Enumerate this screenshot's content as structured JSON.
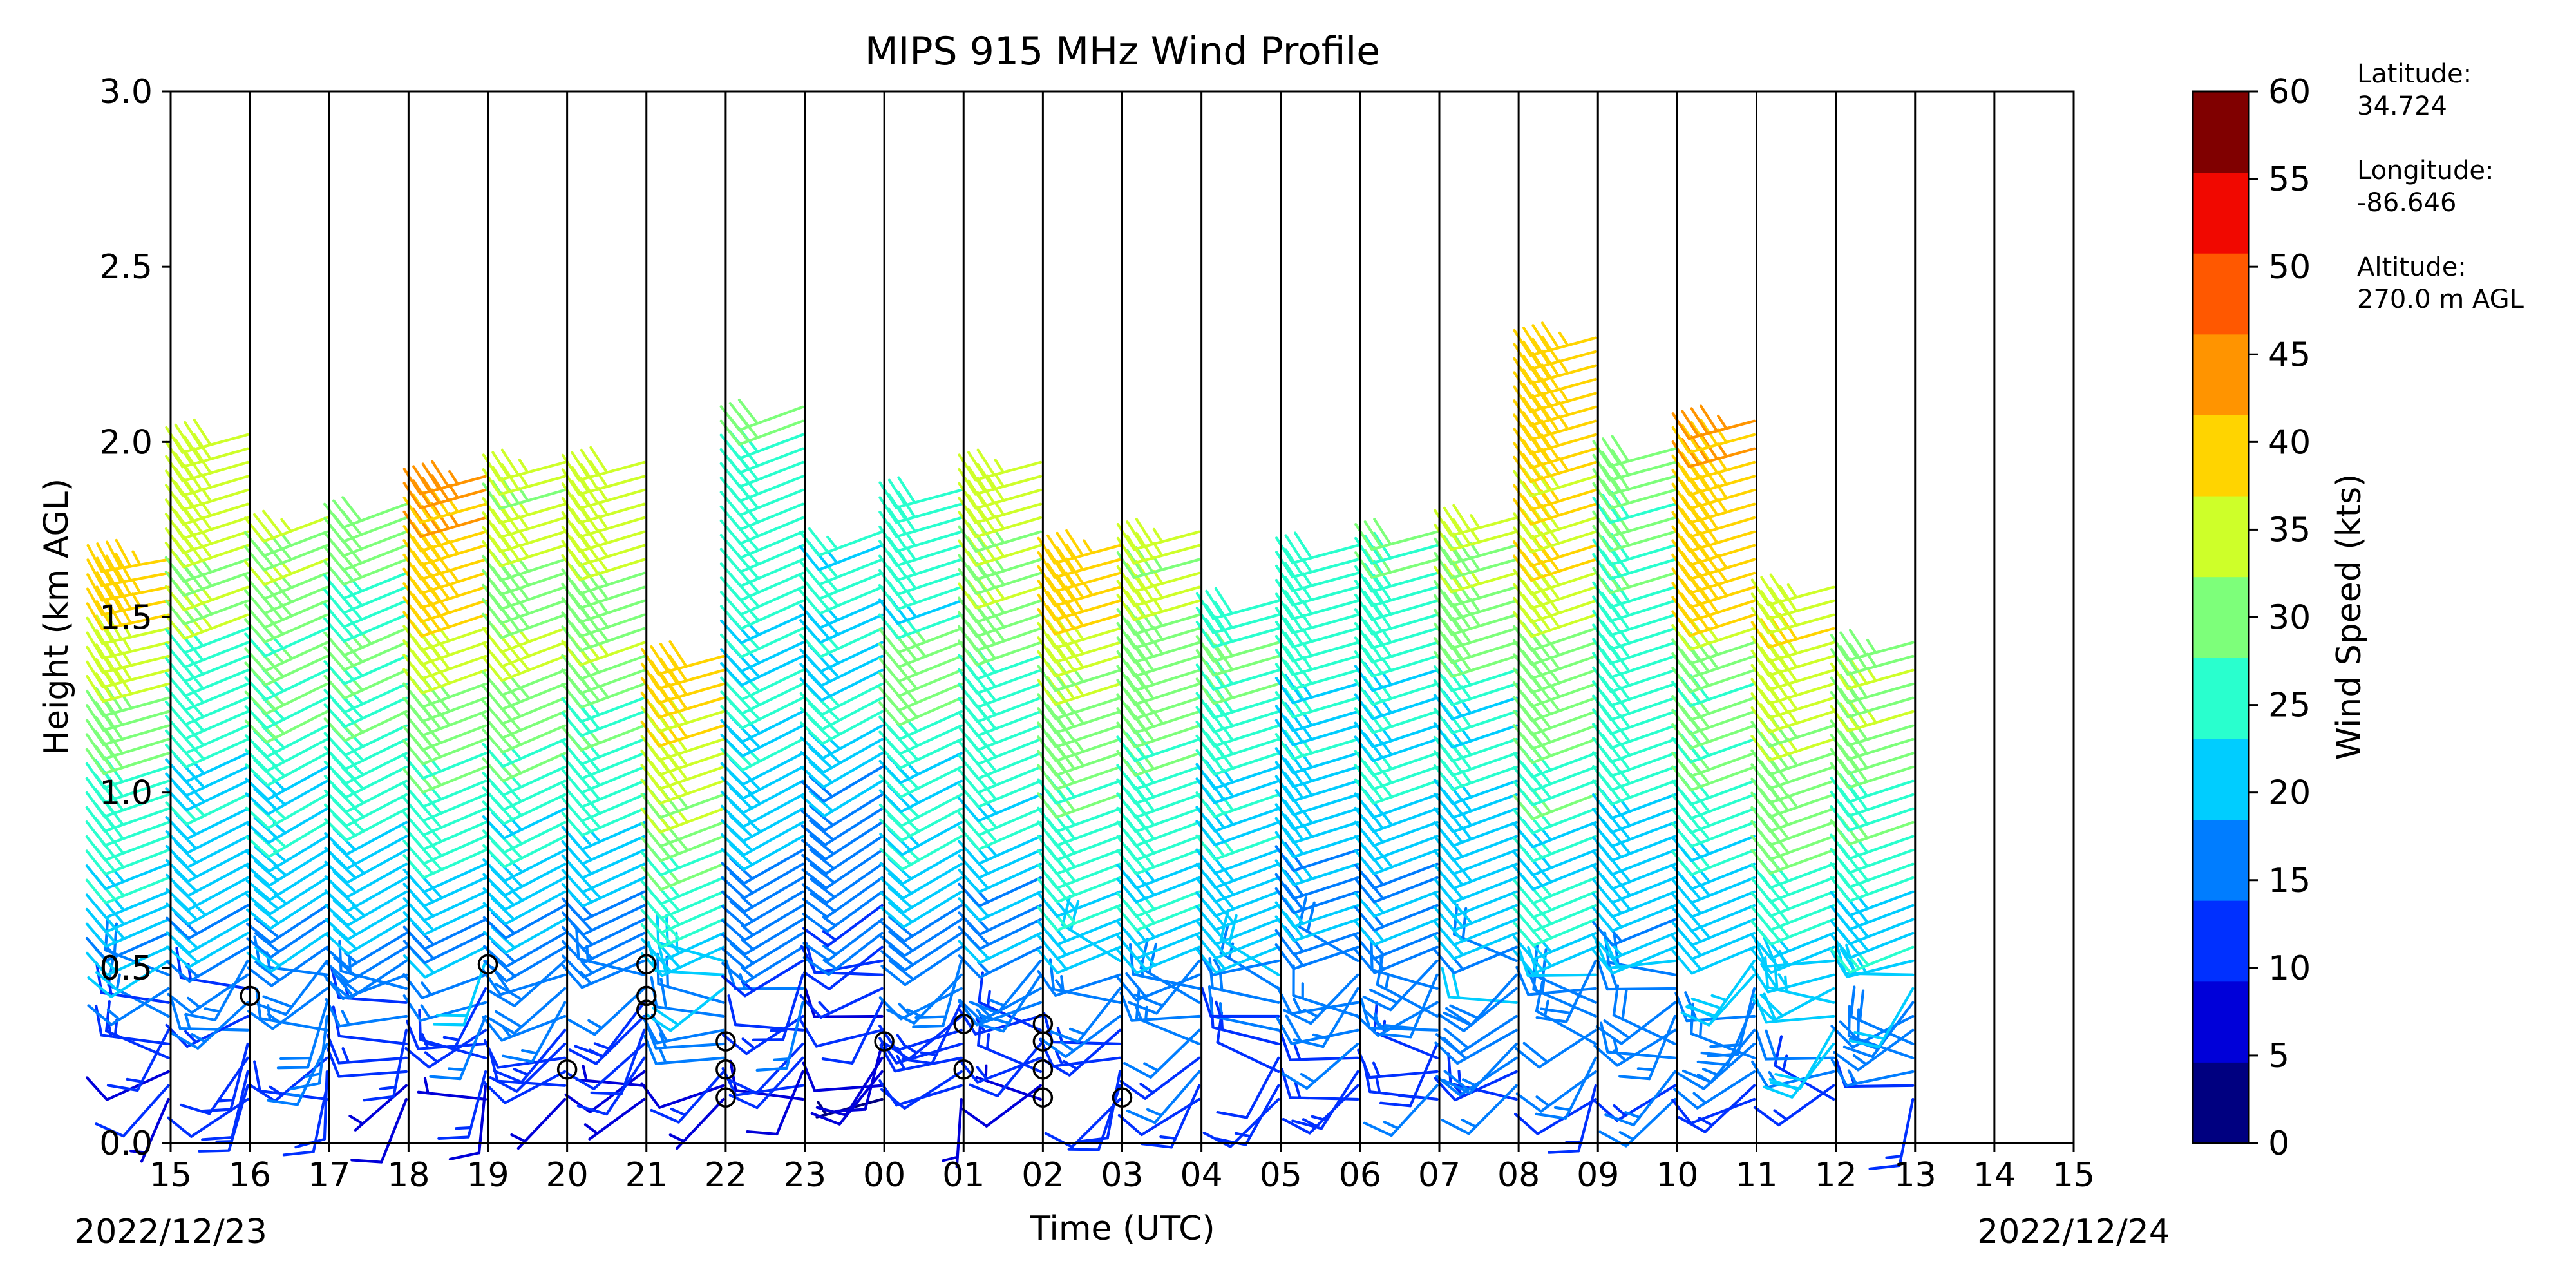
{
  "chart_data": {
    "type": "wind_barbs",
    "title": "MIPS 915 MHz Wind Profile",
    "xlabel": "Time (UTC)",
    "ylabel": "Height (km AGL)",
    "xlim_hours": [
      0,
      24
    ],
    "ylim_km": [
      0,
      3.0
    ],
    "x_ticks": [
      "15",
      "16",
      "17",
      "18",
      "19",
      "20",
      "21",
      "22",
      "23",
      "00",
      "01",
      "02",
      "03",
      "04",
      "05",
      "06",
      "07",
      "08",
      "09",
      "10",
      "11",
      "12",
      "13",
      "14",
      "15"
    ],
    "y_ticks": [
      "0.0",
      "0.5",
      "1.0",
      "1.5",
      "2.0",
      "2.5",
      "3.0"
    ],
    "start_date": "2022/12/23",
    "end_date": "2022/12/24",
    "colorbar": {
      "label": "Wind Speed (kts)",
      "ticks": [
        "0",
        "5",
        "10",
        "15",
        "20",
        "25",
        "30",
        "35",
        "40",
        "45",
        "50",
        "55",
        "60"
      ],
      "colors": [
        "#000080",
        "#0000d9",
        "#0030ff",
        "#007dff",
        "#00cdff",
        "#29ffce",
        "#7dff7a",
        "#ceff29",
        "#ffd400",
        "#ff9400",
        "#ff5800",
        "#f10800",
        "#800000"
      ]
    },
    "site_info": [
      "Latitude:",
      "34.724",
      "Longitude:",
      "-86.646",
      "Altitude:",
      "270.0 m AGL"
    ],
    "gate_heights_km": [
      0.125,
      0.164,
      0.204,
      0.243,
      0.283,
      0.322,
      0.362,
      0.401,
      0.441,
      0.48,
      0.52,
      0.559,
      0.599,
      0.638,
      0.678,
      0.717,
      0.757,
      0.796,
      0.836,
      0.875,
      0.915,
      0.954,
      0.994,
      1.033,
      1.073,
      1.112,
      1.152,
      1.191,
      1.231,
      1.27,
      1.31,
      1.349,
      1.389,
      1.428,
      1.468,
      1.507,
      1.547,
      1.586,
      1.626,
      1.665,
      1.705,
      1.744,
      1.784,
      1.823,
      1.863,
      1.902,
      1.942,
      1.981,
      2.021,
      2.06,
      2.1,
      2.139,
      2.179,
      2.218,
      2.258,
      2.297,
      2.337
    ],
    "profiles": [
      {
        "time_h": 0.5,
        "top_km": 1.7,
        "surface_kts": 8,
        "top_kts": 42,
        "dir_low": 240,
        "dir_high": 260,
        "tall_kts": 44
      },
      {
        "time_h": 1.5,
        "top_km": 2.05,
        "surface_kts": 10,
        "top_kts": 38,
        "dir_low": 235,
        "dir_high": 255,
        "tall_kts": 40
      },
      {
        "time_h": 2.5,
        "top_km": 1.82,
        "surface_kts": 10,
        "top_kts": 36,
        "dir_low": 230,
        "dir_high": 250,
        "tall_kts": 34
      },
      {
        "time_h": 3.5,
        "top_km": 1.86,
        "surface_kts": 8,
        "top_kts": 38,
        "dir_low": 235,
        "dir_high": 250,
        "tall_kts": 22
      },
      {
        "time_h": 4.5,
        "top_km": 1.92,
        "surface_kts": 7,
        "top_kts": 45,
        "dir_low": 240,
        "dir_high": 255,
        "tall_kts": 46
      },
      {
        "time_h": 5.5,
        "top_km": 1.95,
        "surface_kts": 8,
        "top_kts": 42,
        "dir_low": 235,
        "dir_high": 255,
        "tall_kts": 30
      },
      {
        "time_h": 6.5,
        "top_km": 1.97,
        "surface_kts": 6,
        "top_kts": 42,
        "dir_low": 240,
        "dir_high": 255,
        "tall_kts": 32
      },
      {
        "time_h": 7.5,
        "top_km": 1.42,
        "surface_kts": 8,
        "top_kts": 44,
        "dir_low": 240,
        "dir_high": 255,
        "tall_kts": 44
      },
      {
        "time_h": 8.5,
        "top_km": 2.1,
        "surface_kts": 8,
        "top_kts": 34,
        "dir_low": 235,
        "dir_high": 250,
        "tall_kts": 24
      },
      {
        "time_h": 9.5,
        "top_km": 1.78,
        "surface_kts": 5,
        "top_kts": 30,
        "dir_low": 225,
        "dir_high": 250,
        "tall_kts": 20
      },
      {
        "time_h": 10.5,
        "top_km": 1.87,
        "surface_kts": 8,
        "top_kts": 38,
        "dir_low": 230,
        "dir_high": 255,
        "tall_kts": 14
      },
      {
        "time_h": 11.5,
        "top_km": 1.95,
        "surface_kts": 8,
        "top_kts": 38,
        "dir_low": 240,
        "dir_high": 255,
        "tall_kts": 36
      },
      {
        "time_h": 12.5,
        "top_km": 1.74,
        "surface_kts": 10,
        "top_kts": 42,
        "dir_low": 245,
        "dir_high": 255,
        "tall_kts": 46
      },
      {
        "time_h": 13.5,
        "top_km": 1.75,
        "surface_kts": 12,
        "top_kts": 38,
        "dir_low": 245,
        "dir_high": 255,
        "tall_kts": 34
      },
      {
        "time_h": 14.5,
        "top_km": 1.58,
        "surface_kts": 12,
        "top_kts": 32,
        "dir_low": 245,
        "dir_high": 255,
        "tall_kts": 26
      },
      {
        "time_h": 15.5,
        "top_km": 1.72,
        "surface_kts": 12,
        "top_kts": 30,
        "dir_low": 250,
        "dir_high": 255,
        "tall_kts": 22
      },
      {
        "time_h": 16.5,
        "top_km": 1.75,
        "surface_kts": 12,
        "top_kts": 30,
        "dir_low": 245,
        "dir_high": 255,
        "tall_kts": 32
      },
      {
        "time_h": 17.5,
        "top_km": 1.82,
        "surface_kts": 14,
        "top_kts": 32,
        "dir_low": 245,
        "dir_high": 255,
        "tall_kts": 42
      },
      {
        "time_h": 18.5,
        "top_km": 2.3,
        "surface_kts": 14,
        "top_kts": 44,
        "dir_low": 245,
        "dir_high": 255,
        "tall_kts": 44
      },
      {
        "time_h": 19.5,
        "top_km": 2.0,
        "surface_kts": 14,
        "top_kts": 34,
        "dir_low": 245,
        "dir_high": 255,
        "tall_kts": 28
      },
      {
        "time_h": 20.5,
        "top_km": 2.08,
        "surface_kts": 14,
        "top_kts": 40,
        "dir_low": 245,
        "dir_high": 255,
        "tall_kts": 52
      },
      {
        "time_h": 21.5,
        "top_km": 1.62,
        "surface_kts": 14,
        "top_kts": 42,
        "dir_low": 245,
        "dir_high": 255,
        "tall_kts": 34
      },
      {
        "time_h": 22.5,
        "top_km": 1.45,
        "surface_kts": 14,
        "top_kts": 36,
        "dir_low": 245,
        "dir_high": 255,
        "tall_kts": 26
      }
    ],
    "calm_markers": [
      {
        "time_h": 1.0,
        "height_km": 0.42
      },
      {
        "time_h": 4.0,
        "height_km": 0.51
      },
      {
        "time_h": 5.0,
        "height_km": 0.21
      },
      {
        "time_h": 6.0,
        "height_km": 0.38
      },
      {
        "time_h": 6.0,
        "height_km": 0.42
      },
      {
        "time_h": 6.0,
        "height_km": 0.51
      },
      {
        "time_h": 7.0,
        "height_km": 0.13
      },
      {
        "time_h": 7.0,
        "height_km": 0.21
      },
      {
        "time_h": 7.0,
        "height_km": 0.29
      },
      {
        "time_h": 9.0,
        "height_km": 0.29
      },
      {
        "time_h": 10.0,
        "height_km": 0.21
      },
      {
        "time_h": 10.0,
        "height_km": 0.34
      },
      {
        "time_h": 11.0,
        "height_km": 0.13
      },
      {
        "time_h": 11.0,
        "height_km": 0.21
      },
      {
        "time_h": 11.0,
        "height_km": 0.29
      },
      {
        "time_h": 11.0,
        "height_km": 0.34
      },
      {
        "time_h": 12.0,
        "height_km": 0.13
      }
    ]
  }
}
